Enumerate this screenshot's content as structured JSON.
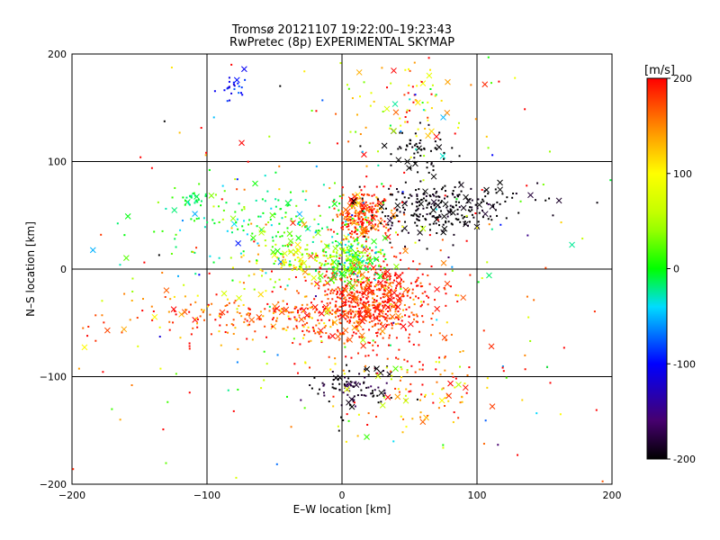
{
  "chart_data": {
    "type": "scatter",
    "title": "Tromsø 20121107 19:22:00–19:23:43",
    "subtitle": "RwPretec (8p) EXPERIMENTAL SKYMAP",
    "xlabel": "E–W location [km]",
    "ylabel": "N–S location [km]",
    "xlim": [
      -200,
      200
    ],
    "ylim": [
      -200,
      200
    ],
    "xticks": [
      -200,
      -100,
      0,
      100,
      200
    ],
    "yticks": [
      -200,
      -100,
      0,
      100,
      200
    ],
    "grid": true,
    "colorbar": {
      "label": "[m/s]",
      "range": [
        -200,
        200
      ],
      "ticks": [
        200,
        100,
        0,
        -100,
        -200
      ],
      "placement": "right"
    },
    "marker_types": [
      "dot",
      "cross"
    ],
    "clusters": [
      {
        "x": 20,
        "y": -30,
        "sx": 22,
        "sy": 20,
        "n": 650,
        "v": 185,
        "sv": 25
      },
      {
        "x": 15,
        "y": 50,
        "sx": 10,
        "sy": 12,
        "n": 260,
        "v": 180,
        "sv": 30
      },
      {
        "x": -60,
        "y": -45,
        "sx": 50,
        "sy": 10,
        "n": 220,
        "v": 170,
        "sv": 35
      },
      {
        "x": 65,
        "y": 55,
        "sx": 22,
        "sy": 12,
        "n": 220,
        "v": -200,
        "sv": 10
      },
      {
        "x": 5,
        "y": 10,
        "sx": 12,
        "sy": 12,
        "n": 240,
        "v": 20,
        "sv": 40
      },
      {
        "x": -30,
        "y": 5,
        "sx": 20,
        "sy": 10,
        "n": 120,
        "v": 80,
        "sv": 50
      },
      {
        "x": -60,
        "y": 40,
        "sx": 40,
        "sy": 22,
        "n": 180,
        "v": 0,
        "sv": 25
      },
      {
        "x": 60,
        "y": 110,
        "sx": 12,
        "sy": 15,
        "n": 60,
        "v": -200,
        "sv": 5
      },
      {
        "x": 110,
        "y": 65,
        "sx": 25,
        "sy": 10,
        "n": 50,
        "v": -200,
        "sv": 10
      },
      {
        "x": 10,
        "y": -110,
        "sx": 15,
        "sy": 10,
        "n": 100,
        "v": -190,
        "sv": 20
      },
      {
        "x": -80,
        "y": 170,
        "sx": 5,
        "sy": 8,
        "n": 25,
        "v": -100,
        "sv": 15
      },
      {
        "x": -110,
        "y": 65,
        "sx": 5,
        "sy": 4,
        "n": 20,
        "v": -10,
        "sv": 10
      },
      {
        "x": 50,
        "y": 160,
        "sx": 25,
        "sy": 25,
        "n": 80,
        "v": 120,
        "sv": 80
      },
      {
        "x": 60,
        "y": -110,
        "sx": 30,
        "sy": 25,
        "n": 100,
        "v": 150,
        "sv": 60
      },
      {
        "x": 0,
        "y": 0,
        "sx": 110,
        "sy": 110,
        "n": 320,
        "v": 110,
        "sv": 130
      }
    ]
  }
}
